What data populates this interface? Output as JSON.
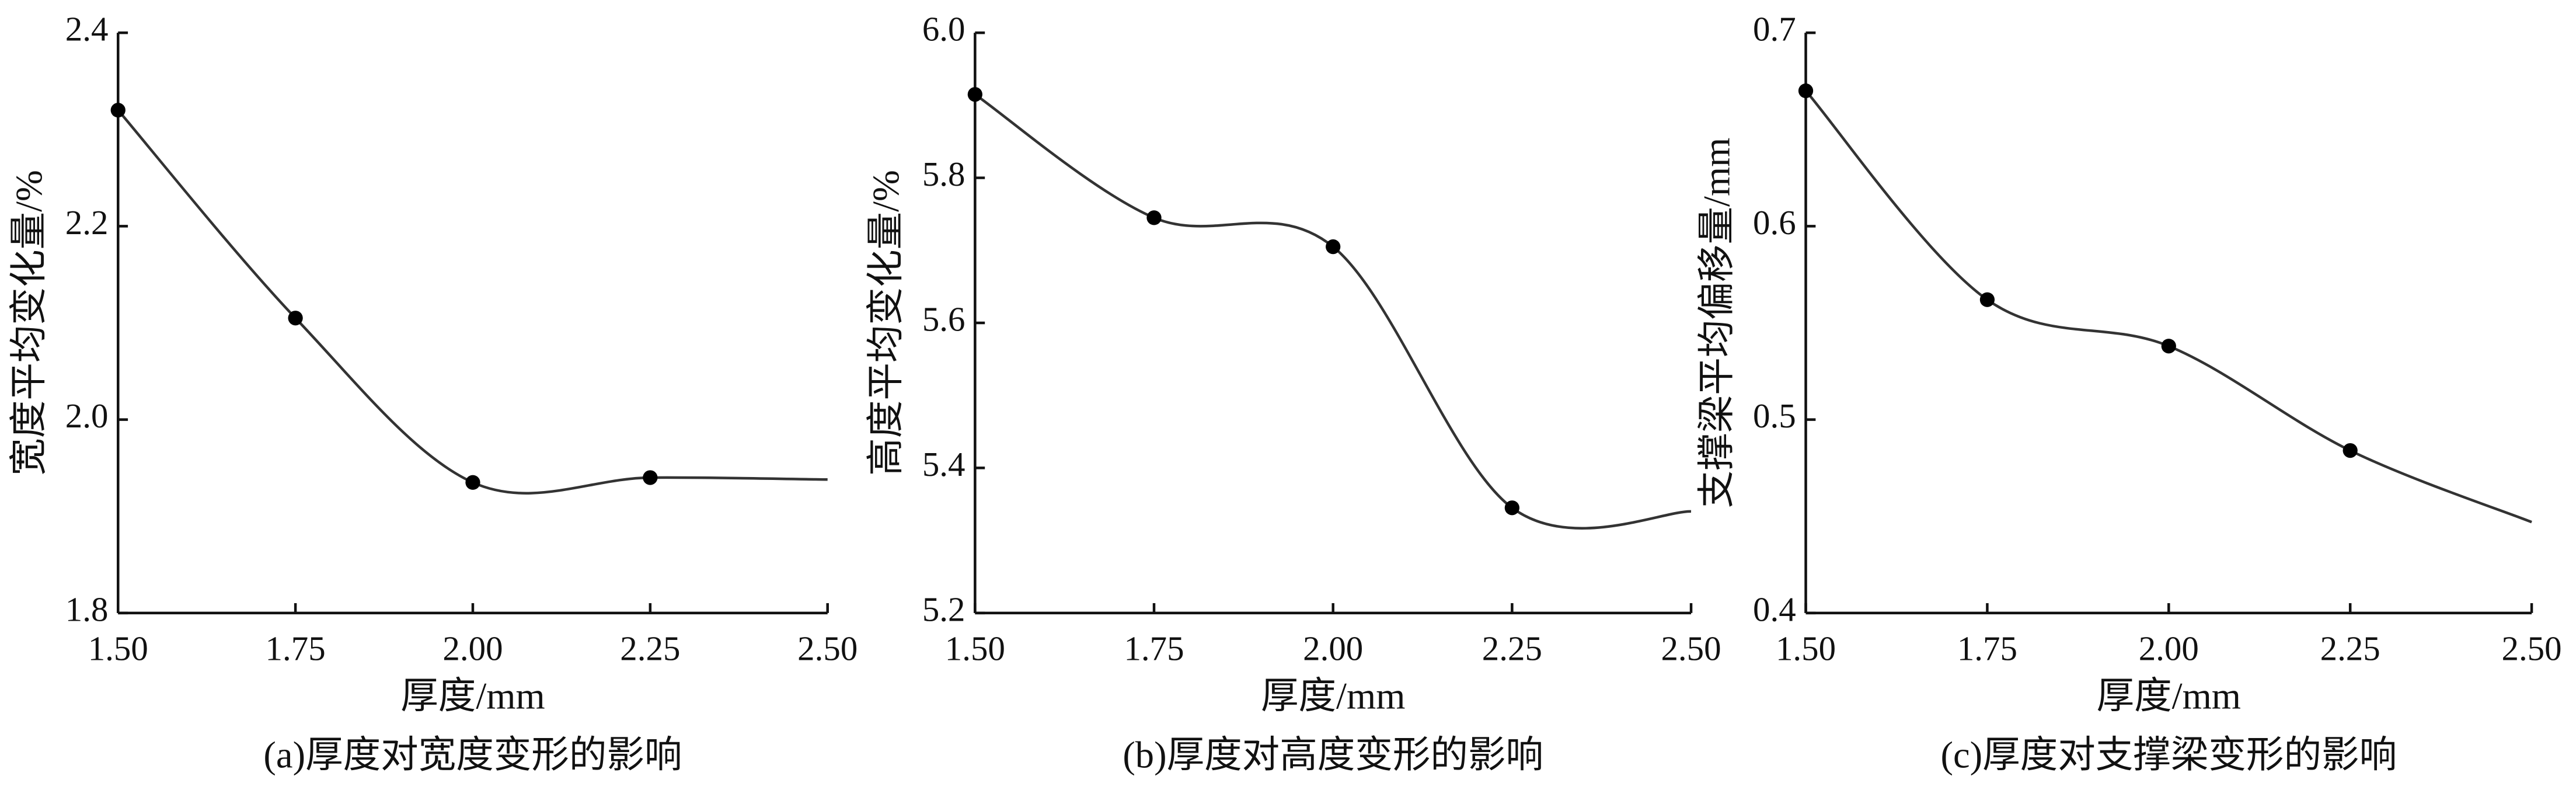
{
  "chart_data": [
    {
      "type": "line",
      "caption": "(a)厚度对宽度变形的影响",
      "xlabel": "厚度/mm",
      "ylabel": "宽度平均变化量/%",
      "x": [
        1.5,
        1.75,
        2.0,
        2.25,
        2.5
      ],
      "values": [
        2.32,
        2.105,
        1.935,
        1.94,
        1.938
      ],
      "markers": [
        true,
        true,
        true,
        true,
        false
      ],
      "color": "#333333",
      "xlim": [
        1.5,
        2.5
      ],
      "xticks": [
        {
          "value": 1.5,
          "label": "1.50"
        },
        1.75,
        {
          "value": 2.0,
          "label": "2.00"
        },
        2.25,
        {
          "value": 2.5,
          "label": "2.50"
        }
      ],
      "ylim": [
        1.8,
        2.4
      ],
      "yticks": [
        1.8,
        {
          "value": 2.0,
          "label": "2.0"
        },
        2.2,
        2.4
      ]
    },
    {
      "type": "line",
      "caption": "(b)厚度对高度变形的影响",
      "xlabel": "厚度/mm",
      "ylabel": "高度平均变化量/%",
      "x": [
        1.5,
        1.75,
        2.0,
        2.25,
        2.5
      ],
      "values": [
        5.915,
        5.745,
        5.705,
        5.345,
        5.34
      ],
      "markers": [
        true,
        true,
        true,
        true,
        false
      ],
      "color": "#333333",
      "xlim": [
        1.5,
        2.5
      ],
      "xticks": [
        {
          "value": 1.5,
          "label": "1.50"
        },
        1.75,
        {
          "value": 2.0,
          "label": "2.00"
        },
        2.25,
        {
          "value": 2.5,
          "label": "2.50"
        }
      ],
      "ylim": [
        5.2,
        6.0
      ],
      "yticks": [
        5.2,
        5.4,
        5.6,
        5.8,
        {
          "value": 6.0,
          "label": "6.0"
        }
      ]
    },
    {
      "type": "line",
      "caption": "(c)厚度对支撑梁变形的影响",
      "xlabel": "厚度/mm",
      "ylabel": "支撑梁平均偏移量/mm",
      "x": [
        1.5,
        1.75,
        2.0,
        2.25,
        2.5
      ],
      "values": [
        0.67,
        0.562,
        0.538,
        0.484,
        0.447
      ],
      "markers": [
        true,
        true,
        true,
        true,
        false
      ],
      "color": "#333333",
      "xlim": [
        1.5,
        2.5
      ],
      "xticks": [
        {
          "value": 1.5,
          "label": "1.50"
        },
        1.75,
        {
          "value": 2.0,
          "label": "2.00"
        },
        2.25,
        {
          "value": 2.5,
          "label": "2.50"
        }
      ],
      "ylim": [
        0.4,
        0.7
      ],
      "yticks": [
        0.4,
        0.5,
        0.6,
        0.7
      ]
    }
  ]
}
